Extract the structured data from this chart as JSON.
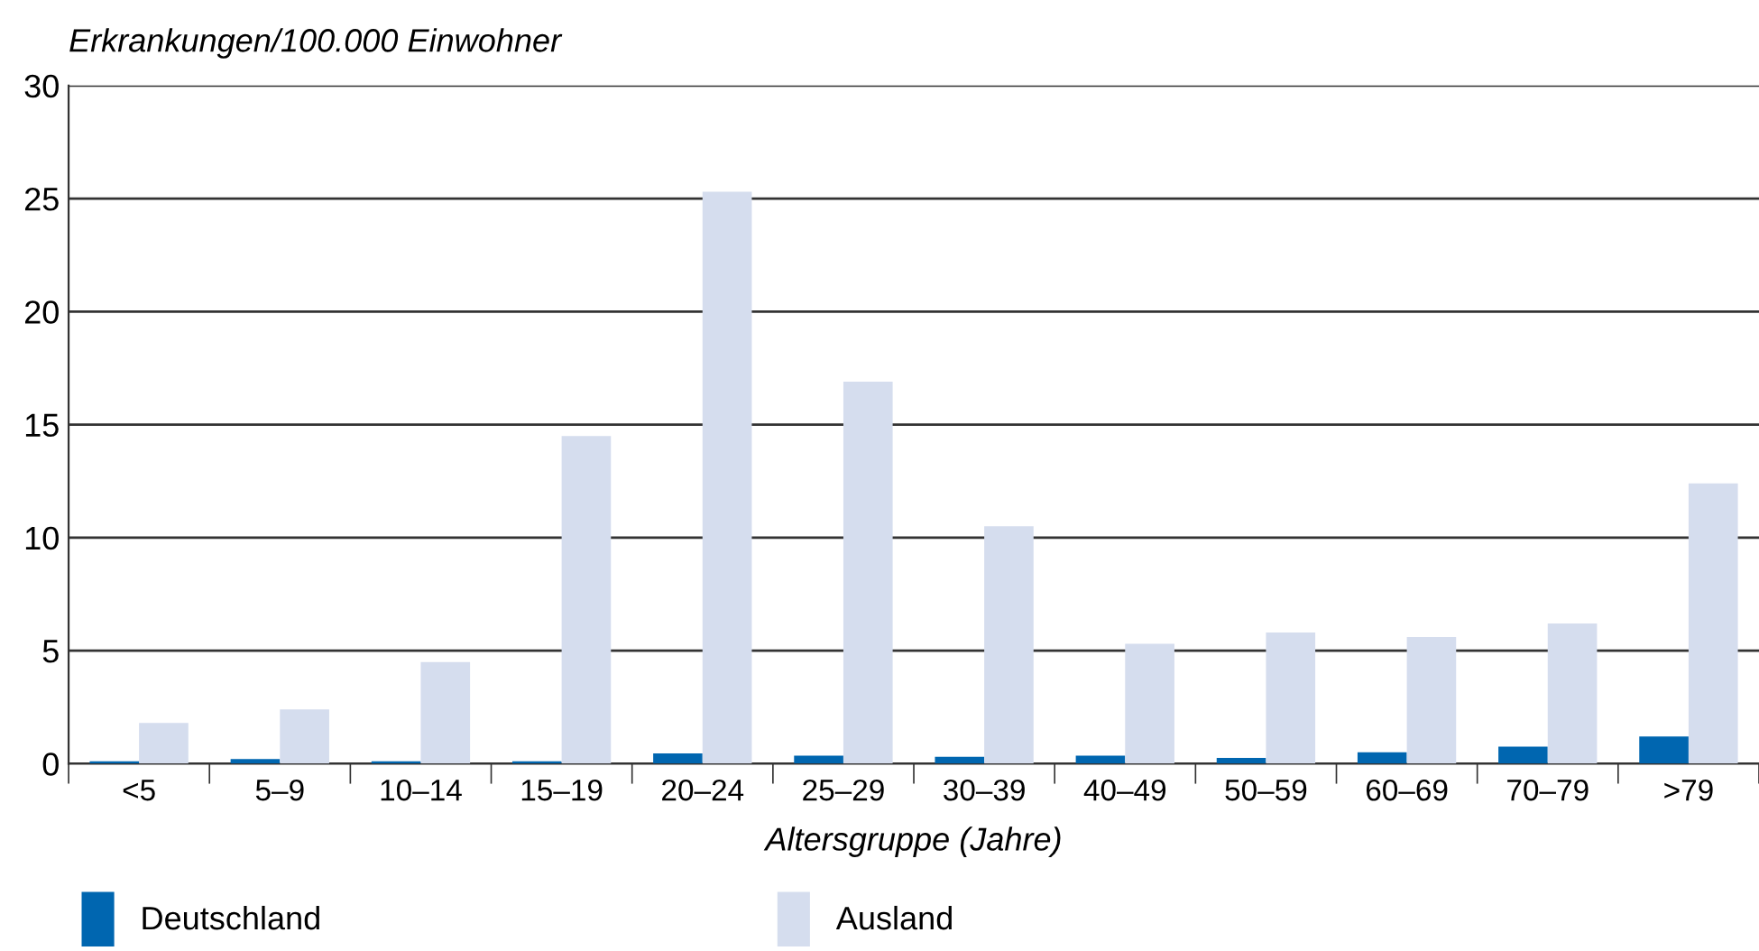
{
  "chart_data": {
    "type": "bar",
    "ylabel": "Erkrankungen/100.000 Einwohner",
    "xlabel": "Altersgruppe (Jahre)",
    "categories": [
      "<5",
      "5–9",
      "10–14",
      "15–19",
      "20–24",
      "25–29",
      "30–39",
      "40–49",
      "50–59",
      "60–69",
      "70–79",
      ">79"
    ],
    "series": [
      {
        "name": "Deutschland",
        "color": "#0066b0",
        "values": [
          0.1,
          0.2,
          0.1,
          0.1,
          0.45,
          0.35,
          0.3,
          0.35,
          0.25,
          0.5,
          0.75,
          1.2
        ]
      },
      {
        "name": "Ausland",
        "color": "#d5ddee",
        "values": [
          1.8,
          2.4,
          4.5,
          14.5,
          25.3,
          16.9,
          10.5,
          5.3,
          5.8,
          5.6,
          6.2,
          12.4
        ]
      }
    ],
    "ylim": [
      0,
      30
    ],
    "yticks": [
      0,
      5,
      10,
      15,
      20,
      25,
      30
    ],
    "grid": "y",
    "legend": "bottom left"
  }
}
